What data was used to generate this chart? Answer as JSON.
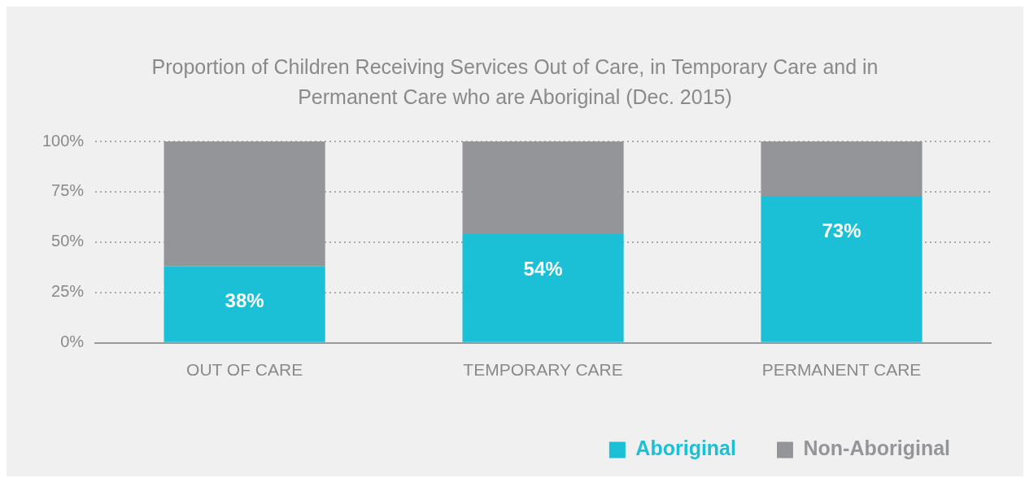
{
  "chart_data": {
    "type": "bar",
    "title": "Proportion of Children Receiving Services Out of Care, in Temporary Care and in Permanent Care who are Aboriginal (Dec. 2015)",
    "categories": [
      "OUT OF CARE",
      "TEMPORARY CARE",
      "PERMANENT CARE"
    ],
    "stacked": true,
    "series": [
      {
        "name": "Aboriginal",
        "color": "#1bbfd6",
        "values": [
          38,
          54,
          73
        ],
        "value_labels": [
          "38%",
          "54%",
          "73%"
        ]
      },
      {
        "name": "Non-Aboriginal",
        "color": "#939598",
        "values": [
          62,
          46,
          27
        ]
      }
    ],
    "ylim": [
      0,
      100
    ],
    "yticks": [
      {
        "value": 0,
        "label": "0%"
      },
      {
        "value": 25,
        "label": "25%"
      },
      {
        "value": 50,
        "label": "50%"
      },
      {
        "value": 75,
        "label": "75%"
      },
      {
        "value": 100,
        "label": "100%"
      }
    ],
    "grid": "y",
    "legend": "bottom right"
  }
}
